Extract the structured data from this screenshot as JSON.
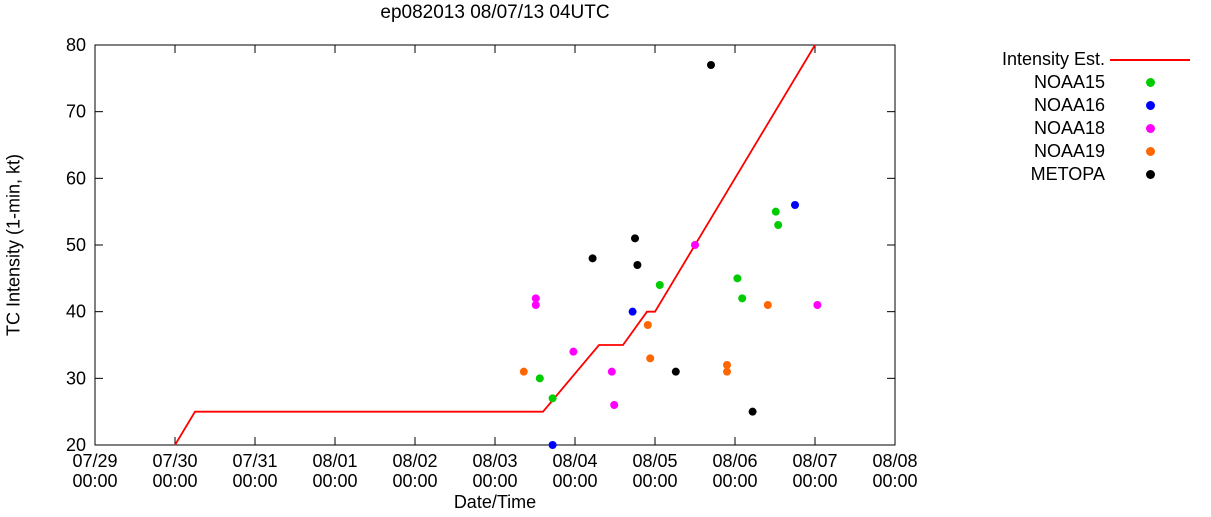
{
  "title": "ep082013 08/07/13 04UTC",
  "axes": {
    "x_label": "Date/Time",
    "y_label": "TC Intensity (1-min, kt)",
    "x_ticks": [
      {
        "date": "07/29",
        "time": "00:00"
      },
      {
        "date": "07/30",
        "time": "00:00"
      },
      {
        "date": "07/31",
        "time": "00:00"
      },
      {
        "date": "08/01",
        "time": "00:00"
      },
      {
        "date": "08/02",
        "time": "00:00"
      },
      {
        "date": "08/03",
        "time": "00:00"
      },
      {
        "date": "08/04",
        "time": "00:00"
      },
      {
        "date": "08/05",
        "time": "00:00"
      },
      {
        "date": "08/06",
        "time": "00:00"
      },
      {
        "date": "08/07",
        "time": "00:00"
      },
      {
        "date": "08/08",
        "time": "00:00"
      }
    ],
    "y_ticks": [
      20,
      30,
      40,
      50,
      60,
      70,
      80
    ]
  },
  "legend": {
    "items": [
      {
        "label": "Intensity Est.",
        "color": "#ff0000",
        "marker": "line"
      },
      {
        "label": "NOAA15",
        "color": "#00cc00",
        "marker": "dot"
      },
      {
        "label": "NOAA16",
        "color": "#0000ff",
        "marker": "dot"
      },
      {
        "label": "NOAA18",
        "color": "#ff00ff",
        "marker": "dot"
      },
      {
        "label": "NOAA19",
        "color": "#ff6600",
        "marker": "dot"
      },
      {
        "label": "METOPA",
        "color": "#000000",
        "marker": "dot"
      }
    ]
  },
  "chart_data": {
    "type": "line+scatter",
    "title": "ep082013 08/07/13 04UTC",
    "xlabel": "Date/Time",
    "ylabel": "TC Intensity (1-min, kt)",
    "x_unit": "days since 07/29 00:00",
    "x_range": [
      0,
      10
    ],
    "y_range": [
      20,
      80
    ],
    "grid": false,
    "legend_position": "outside-right",
    "line_series": {
      "name": "Intensity Est.",
      "color": "#ff0000",
      "points": [
        [
          1.0,
          20
        ],
        [
          1.25,
          25
        ],
        [
          5.6,
          25
        ],
        [
          6.3,
          35
        ],
        [
          6.6,
          35
        ],
        [
          6.9,
          40
        ],
        [
          7.0,
          40
        ],
        [
          9.0,
          80
        ]
      ]
    },
    "scatter_series": [
      {
        "name": "NOAA15",
        "color": "#00cc00",
        "points": [
          [
            5.56,
            30
          ],
          [
            5.72,
            27
          ],
          [
            7.06,
            44
          ],
          [
            8.03,
            45
          ],
          [
            8.09,
            42
          ],
          [
            8.51,
            55
          ],
          [
            8.54,
            53
          ]
        ]
      },
      {
        "name": "NOAA16",
        "color": "#0000ff",
        "points": [
          [
            5.72,
            20
          ],
          [
            6.72,
            40
          ],
          [
            8.75,
            56
          ]
        ]
      },
      {
        "name": "NOAA18",
        "color": "#ff00ff",
        "points": [
          [
            5.51,
            42
          ],
          [
            5.51,
            41
          ],
          [
            5.98,
            34
          ],
          [
            6.46,
            31
          ],
          [
            6.49,
            26
          ],
          [
            7.5,
            50
          ],
          [
            9.03,
            41
          ]
        ]
      },
      {
        "name": "NOAA19",
        "color": "#ff6600",
        "points": [
          [
            5.36,
            31
          ],
          [
            6.91,
            38
          ],
          [
            6.94,
            33
          ],
          [
            7.9,
            32
          ],
          [
            7.9,
            31
          ],
          [
            8.41,
            41
          ]
        ]
      },
      {
        "name": "METOPA",
        "color": "#000000",
        "points": [
          [
            6.22,
            48
          ],
          [
            6.75,
            51
          ],
          [
            6.78,
            47
          ],
          [
            7.26,
            31
          ],
          [
            7.7,
            77
          ],
          [
            8.22,
            25
          ]
        ]
      }
    ]
  }
}
